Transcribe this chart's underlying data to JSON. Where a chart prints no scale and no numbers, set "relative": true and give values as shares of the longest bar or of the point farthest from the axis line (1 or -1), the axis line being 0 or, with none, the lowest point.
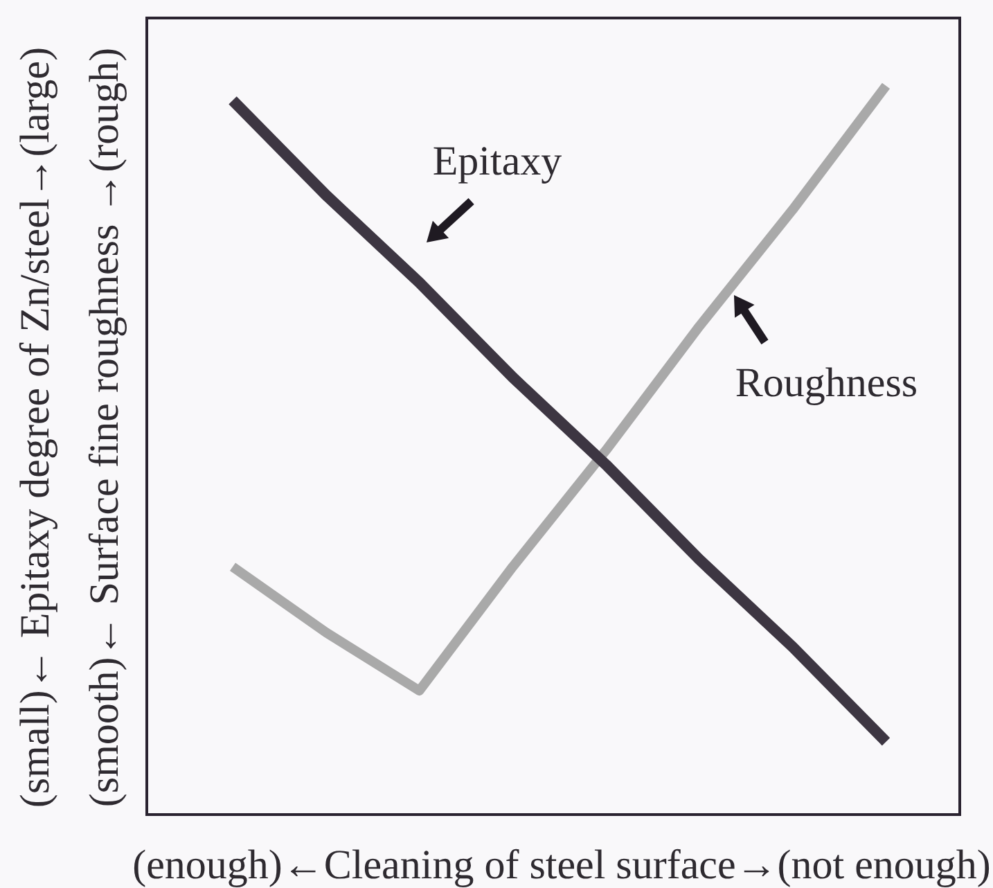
{
  "chart_data": {
    "type": "line",
    "xlabel": "(enough)←Cleaning of steel surface→(not enough)",
    "ylabel": "(small)← Epitaxy degree of Zn/steel→(large)\n(smooth)← Surface fine roughness →(rough)",
    "relative": true,
    "grid": false,
    "marker": "none",
    "line_style": "solid",
    "categories": [
      null,
      null,
      null,
      null,
      null,
      null,
      null,
      null
    ],
    "series": [
      {
        "name": "Epitaxy",
        "color": "#3d3642",
        "values": [
          0.98,
          0.85,
          0.73,
          0.6,
          0.48,
          0.35,
          0.23,
          0.1
        ]
      },
      {
        "name": "Roughness",
        "color": "#a9a9a9",
        "values": [
          0.34,
          0.25,
          0.17,
          0.34,
          0.5,
          0.67,
          0.83,
          1
        ]
      }
    ]
  }
}
